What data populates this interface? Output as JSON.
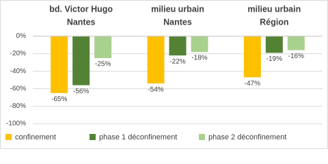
{
  "chart_data": {
    "type": "bar",
    "categories": [
      [
        "bd. Victor Hugo",
        "Nantes"
      ],
      [
        "milieu urbain",
        "Nantes"
      ],
      [
        "milieu urbain",
        "Région"
      ]
    ],
    "series": [
      {
        "name": "confinement",
        "color": "#ffc000",
        "values": [
          -65,
          -54,
          -47
        ],
        "value_labels": [
          "-65%",
          "-54%",
          "-47%"
        ]
      },
      {
        "name": "phase 1 déconfinement",
        "color": "#548235",
        "values": [
          -56,
          -22,
          -19
        ],
        "value_labels": [
          "-56%",
          "-22%",
          "-19%"
        ]
      },
      {
        "name": "phase 2 déconfinement",
        "color": "#a9d18e",
        "values": [
          -25,
          -18,
          -16
        ],
        "value_labels": [
          "-25%",
          "-18%",
          "-16%"
        ]
      }
    ],
    "ylim": [
      -100,
      0
    ],
    "yticks": [
      {
        "value": 0,
        "label": "0%"
      },
      {
        "value": -20,
        "label": "-20%"
      },
      {
        "value": -40,
        "label": "-40%"
      },
      {
        "value": -60,
        "label": "-60%"
      },
      {
        "value": -80,
        "label": "-80%"
      },
      {
        "value": -100,
        "label": "-100%"
      }
    ],
    "grid": true
  }
}
